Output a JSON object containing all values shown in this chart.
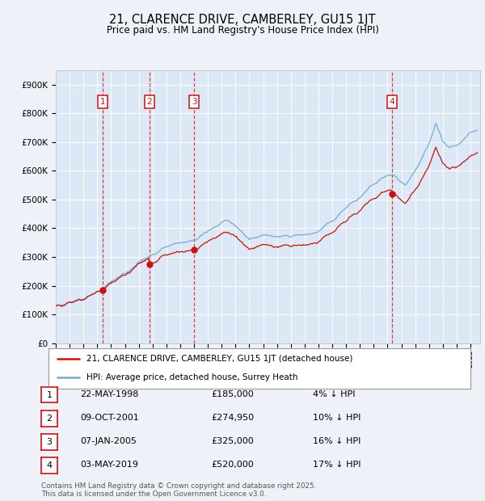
{
  "title": "21, CLARENCE DRIVE, CAMBERLEY, GU15 1JT",
  "subtitle": "Price paid vs. HM Land Registry's House Price Index (HPI)",
  "ylim": [
    0,
    950000
  ],
  "yticks": [
    0,
    100000,
    200000,
    300000,
    400000,
    500000,
    600000,
    700000,
    800000,
    900000
  ],
  "ytick_labels": [
    "£0",
    "£100K",
    "£200K",
    "£300K",
    "£400K",
    "£500K",
    "£600K",
    "£700K",
    "£800K",
    "£900K"
  ],
  "background_color": "#eef2f8",
  "plot_bg_color": "#dce8f5",
  "grid_color": "#ffffff",
  "red_line_color": "#cc1111",
  "blue_line_color": "#7aaad0",
  "sale_times": [
    1998.39,
    2001.77,
    2005.02,
    2019.34
  ],
  "sale_prices": [
    185000,
    274950,
    325000,
    520000
  ],
  "sale_labels": [
    "1",
    "2",
    "3",
    "4"
  ],
  "vline_color": "#dd2222",
  "legend_entries": [
    "21, CLARENCE DRIVE, CAMBERLEY, GU15 1JT (detached house)",
    "HPI: Average price, detached house, Surrey Heath"
  ],
  "table_rows": [
    [
      "1",
      "22-MAY-1998",
      "£185,000",
      "4% ↓ HPI"
    ],
    [
      "2",
      "09-OCT-2001",
      "£274,950",
      "10% ↓ HPI"
    ],
    [
      "3",
      "07-JAN-2005",
      "£325,000",
      "16% ↓ HPI"
    ],
    [
      "4",
      "03-MAY-2019",
      "£520,000",
      "17% ↓ HPI"
    ]
  ],
  "footer": "Contains HM Land Registry data © Crown copyright and database right 2025.\nThis data is licensed under the Open Government Licence v3.0."
}
